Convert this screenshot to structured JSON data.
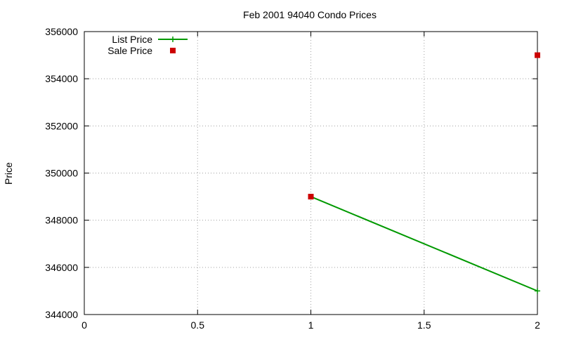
{
  "chart_data": {
    "type": "line",
    "title": "Feb 2001 94040 Condo Prices",
    "xlabel": "",
    "ylabel": "Price",
    "xlim": [
      0,
      2
    ],
    "ylim": [
      344000,
      356000
    ],
    "xticks": [
      0,
      0.5,
      1,
      1.5,
      2
    ],
    "xtick_labels": [
      "0",
      "0.5",
      "1",
      "1.5",
      "2"
    ],
    "yticks": [
      344000,
      346000,
      348000,
      350000,
      352000,
      354000,
      356000
    ],
    "ytick_labels": [
      "344000",
      "346000",
      "348000",
      "350000",
      "352000",
      "354000",
      "356000"
    ],
    "grid": true,
    "legend_position": "top-left",
    "series": [
      {
        "name": "List Price",
        "style": "line",
        "marker": "plus",
        "color": "#009900",
        "points": [
          [
            1,
            349000
          ],
          [
            2,
            345000
          ]
        ]
      },
      {
        "name": "Sale Price",
        "style": "points",
        "marker": "square",
        "color": "#cc0000",
        "points": [
          [
            1,
            349000
          ],
          [
            2,
            355000
          ]
        ]
      }
    ]
  }
}
